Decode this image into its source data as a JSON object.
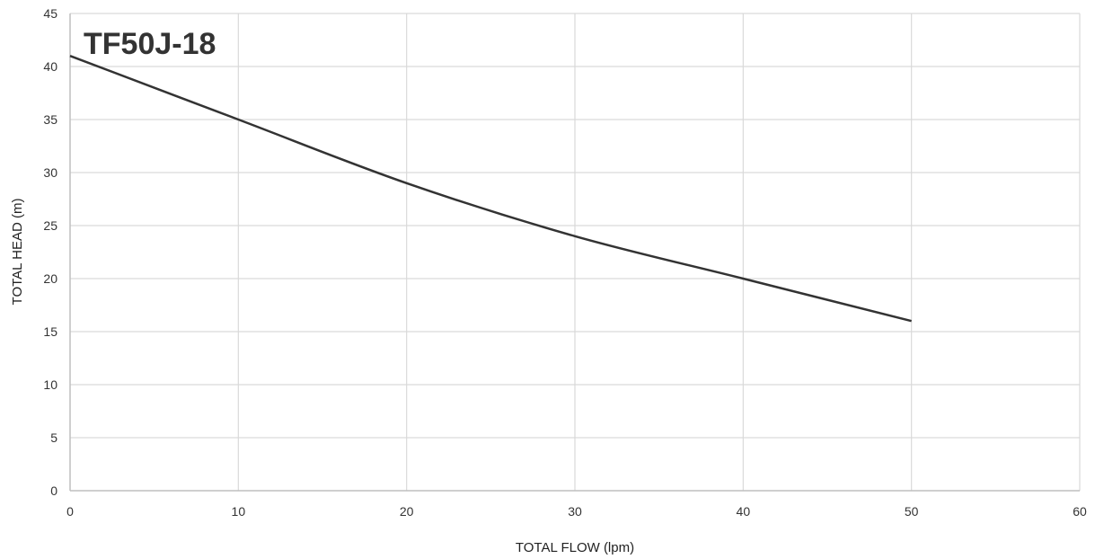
{
  "chart_data": {
    "type": "line",
    "title": "TF50J-18",
    "xlabel": "TOTAL FLOW (lpm)",
    "ylabel": "TOTAL HEAD (m)",
    "xlim": [
      0,
      60
    ],
    "ylim": [
      0,
      45
    ],
    "x_ticks": [
      "0",
      "10",
      "20",
      "30",
      "40",
      "50",
      "60"
    ],
    "y_ticks": [
      "0",
      "5",
      "10",
      "15",
      "20",
      "25",
      "30",
      "35",
      "40",
      "45"
    ],
    "grid": true,
    "series": [
      {
        "x": [
          0,
          10,
          20,
          30,
          40,
          50
        ],
        "y": [
          41,
          35,
          29,
          24,
          20,
          16
        ]
      }
    ],
    "line_color": "#333333",
    "grid_color": "#d9d9d9"
  }
}
